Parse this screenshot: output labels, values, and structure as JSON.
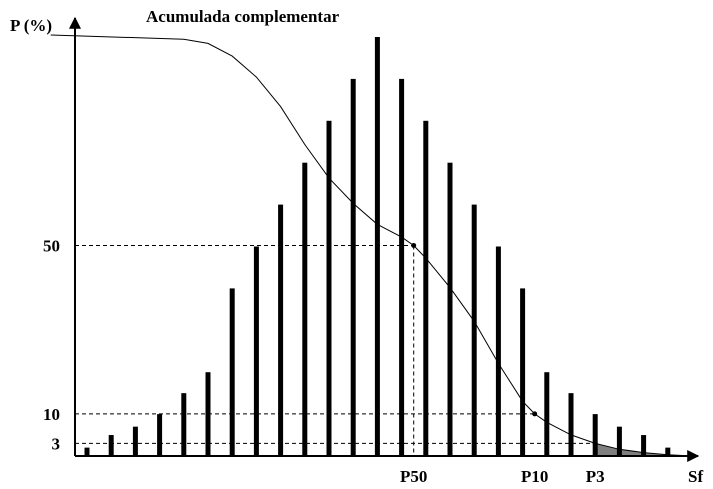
{
  "chart_data": {
    "type": "bar",
    "title": "Acumulada complementar",
    "ylabel": "P (%)",
    "xlabel": "Sf",
    "ylim": [
      0,
      100
    ],
    "y_ticks": [
      {
        "value": 3,
        "label": "3"
      },
      {
        "value": 10,
        "label": "10"
      },
      {
        "value": 50,
        "label": "50"
      }
    ],
    "x_markers": [
      {
        "bar_index": 13.5,
        "label": "P50",
        "y": 50
      },
      {
        "bar_index": 18.5,
        "label": "P10",
        "y": 10
      },
      {
        "bar_index": 21.0,
        "label": "P3",
        "y": 3
      }
    ],
    "bar_relative_heights": [
      0.02,
      0.05,
      0.07,
      0.1,
      0.15,
      0.2,
      0.4,
      0.5,
      0.6,
      0.7,
      0.8,
      0.9,
      1.0,
      0.9,
      0.8,
      0.7,
      0.6,
      0.5,
      0.4,
      0.2,
      0.15,
      0.1,
      0.07,
      0.05,
      0.02
    ],
    "series": [
      {
        "type": "line",
        "points": [
          [
            -1.5,
            100
          ],
          [
            4.0,
            99
          ],
          [
            5.0,
            98
          ],
          [
            6.0,
            95
          ],
          [
            7.0,
            90
          ],
          [
            8.0,
            83
          ],
          [
            9.0,
            74
          ],
          [
            10.0,
            66
          ],
          [
            11.0,
            60
          ],
          [
            12.0,
            55
          ],
          [
            13.0,
            52
          ],
          [
            13.5,
            50
          ],
          [
            14.0,
            47
          ],
          [
            15.0,
            40
          ],
          [
            16.0,
            32
          ],
          [
            17.0,
            22
          ],
          [
            18.0,
            13
          ],
          [
            18.5,
            10
          ],
          [
            19.0,
            8
          ],
          [
            20.0,
            5
          ],
          [
            21.0,
            3
          ],
          [
            22.0,
            1.6
          ],
          [
            23.0,
            0.8
          ],
          [
            24.0,
            0.3
          ],
          [
            25.0,
            0
          ]
        ]
      }
    ],
    "shaded_area": {
      "from_bar_index": 21.0,
      "to_bar_index": 25.0,
      "color": "#808080"
    },
    "colors": {
      "bars": "#000000",
      "curve": "#000000",
      "shade": "#808080"
    }
  }
}
